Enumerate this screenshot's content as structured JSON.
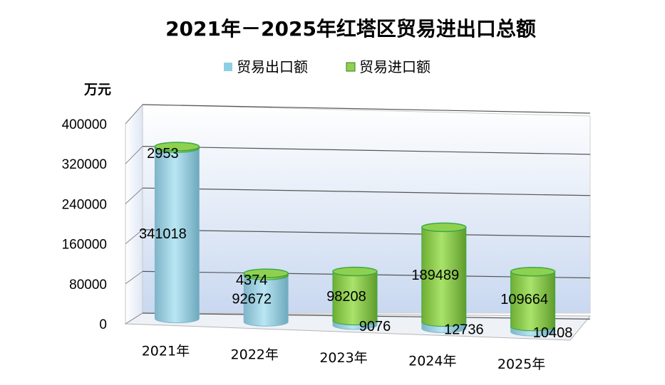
{
  "chart_data": {
    "type": "bar",
    "title": "2021年－2025年红塔区贸易进出口总额",
    "ylabel": "万元",
    "xlabel": "",
    "ylim": [
      0,
      400000
    ],
    "yticks": [
      "0",
      "80000",
      "160000",
      "240000",
      "320000",
      "400000"
    ],
    "categories": [
      "2021年",
      "2022年",
      "2023年",
      "2024年",
      "2025年"
    ],
    "series": [
      {
        "name": "贸易出口额",
        "color": "#8ccfe3",
        "values": [
          341018,
          92672,
          9076,
          12736,
          10408
        ],
        "labels": [
          "341018",
          "92672",
          "9076",
          "12736",
          "10408"
        ]
      },
      {
        "name": "贸易进口额",
        "color": "#8fd14f",
        "values": [
          2953,
          4374,
          98208,
          189489,
          109664
        ],
        "labels": [
          "2953",
          "4374",
          "98208",
          "189489",
          "109664"
        ]
      }
    ],
    "legend_position": "top",
    "grid": true
  }
}
